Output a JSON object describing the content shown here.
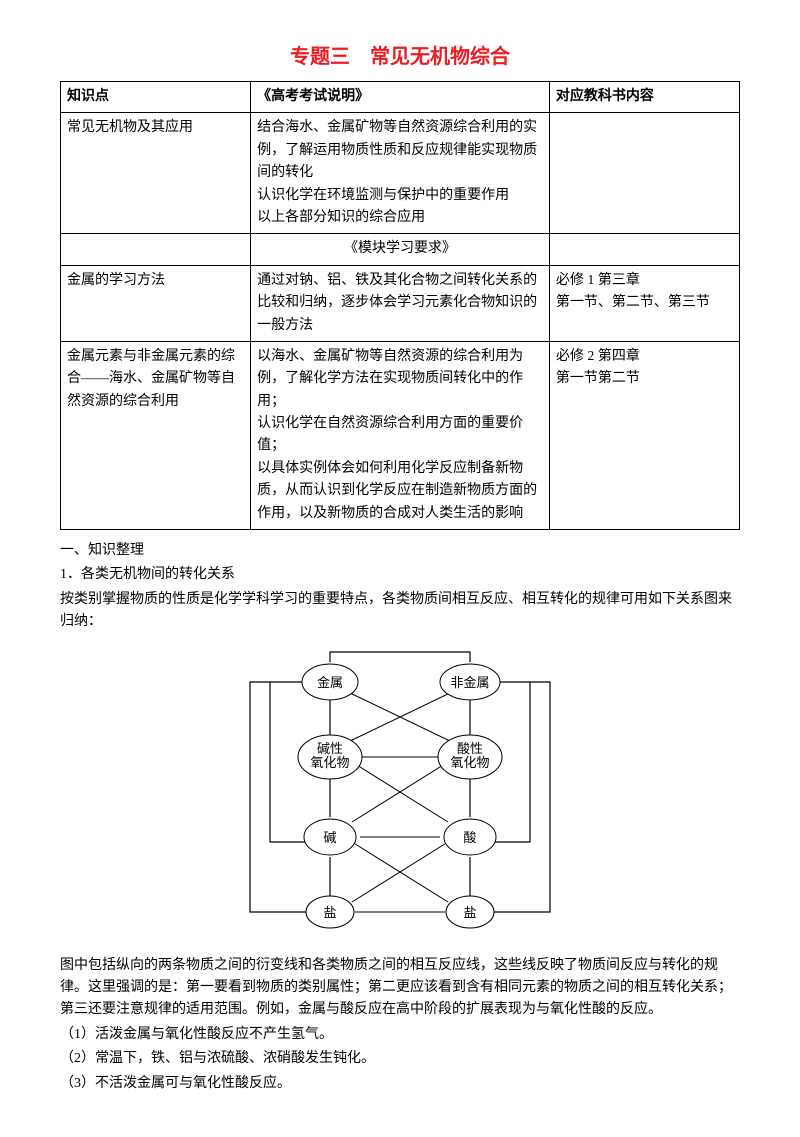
{
  "title": "专题三　常见无机物综合",
  "table": {
    "headers": [
      "知识点",
      "《高考考试说明》",
      "对应教科书内容"
    ],
    "rows": [
      {
        "c0": "常见无机物及其应用",
        "c1": "结合海水、金属矿物等自然资源综合利用的实例，了解运用物质性质和反应规律能实现物质间的转化\n认识化学在环境监测与保护中的重要作用\n以上各部分知识的综合应用",
        "c2": ""
      }
    ],
    "subhead": "《模块学习要求》",
    "rows2": [
      {
        "c0": "金属的学习方法",
        "c1": "通过对钠、铝、铁及其化合物之间转化关系的比较和归纳，逐步体会学习元素化合物知识的一般方法",
        "c2": "必修 1 第三章\n第一节、第二节、第三节"
      },
      {
        "c0": "金属元素与非金属元素的综合——海水、金属矿物等自然资源的综合利用",
        "c1": "以海水、金属矿物等自然资源的综合利用为例，了解化学方法在实现物质间转化中的作用；\n认识化学在自然资源综合利用方面的重要价值；\n以具体实例体会如何利用化学反应制备新物质，从而认识到化学反应在制造新物质方面的作用，以及新物质的合成对人类生活的影响",
        "c2": "必修 2 第四章\n第一节第二节"
      }
    ]
  },
  "body": {
    "h1": "一、知识整理",
    "h2": "1．各类无机物间的转化关系",
    "p1": "按类别掌握物质的性质是化学学科学习的重要特点，各类物质间相互反应、相互转化的规律可用如下关系图来归纳：",
    "p2": "图中包括纵向的两条物质之间的衍变线和各类物质之间的相互反应线，这些线反映了物质间反应与转化的规律。这里强调的是：第一要看到物质的类别属性；第二更应该看到含有相同元素的物质之间的相互转化关系；第三还要注意规律的适用范围。例如，金属与酸反应在高中阶段的扩展表现为与氧化性酸的反应。",
    "p3": "（1）活泼金属与氧化性酸反应不产生氢气。",
    "p4": "（2）常温下，铁、铝与浓硫酸、浓硝酸发生钝化。",
    "p5": "（3）不活泼金属可与氧化性酸反应。"
  },
  "diagram": {
    "nodes": {
      "metal": "金属",
      "nonmetal": "非金属",
      "basicOxide": "碱性\n氧化物",
      "acidicOxide": "酸性\n氧化物",
      "base": "碱",
      "acid": "酸",
      "salt1": "盐",
      "salt2": "盐"
    },
    "stroke": "#000000",
    "fill": "#ffffff",
    "fontsize": 13
  }
}
